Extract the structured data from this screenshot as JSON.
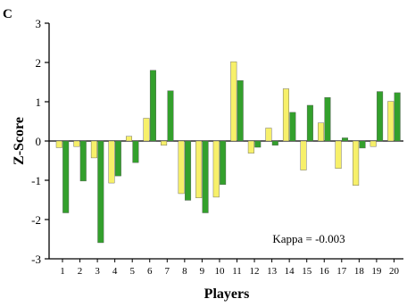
{
  "chart_data": {
    "type": "bar",
    "panel_label": "C",
    "xlabel": "Players",
    "ylabel": "Z-Score",
    "ylim": [
      -3,
      3
    ],
    "yticks": [
      "3",
      "2",
      "1",
      "0",
      "-1",
      "-2",
      "-3"
    ],
    "categories": [
      "1",
      "2",
      "3",
      "4",
      "5",
      "6",
      "7",
      "8",
      "9",
      "10",
      "11",
      "12",
      "13",
      "14",
      "15",
      "16",
      "17",
      "18",
      "19",
      "20"
    ],
    "series": [
      {
        "color": "#f7f06a",
        "values": [
          -0.17,
          -0.14,
          -0.43,
          -1.07,
          0.12,
          0.58,
          -0.11,
          -1.34,
          -1.45,
          -1.43,
          2.02,
          -0.31,
          0.33,
          1.33,
          -0.74,
          0.46,
          -0.7,
          -1.13,
          -0.14,
          1.01
        ]
      },
      {
        "color": "#33a02c",
        "values": [
          -1.83,
          -1.02,
          -2.59,
          -0.89,
          -0.55,
          1.8,
          1.28,
          -1.51,
          -1.83,
          -1.11,
          1.54,
          -0.16,
          -0.11,
          0.73,
          0.91,
          1.11,
          0.08,
          -0.18,
          1.26,
          1.23
        ]
      }
    ],
    "annotation": "Kappa = -0.003",
    "grid": false,
    "legend": false
  }
}
